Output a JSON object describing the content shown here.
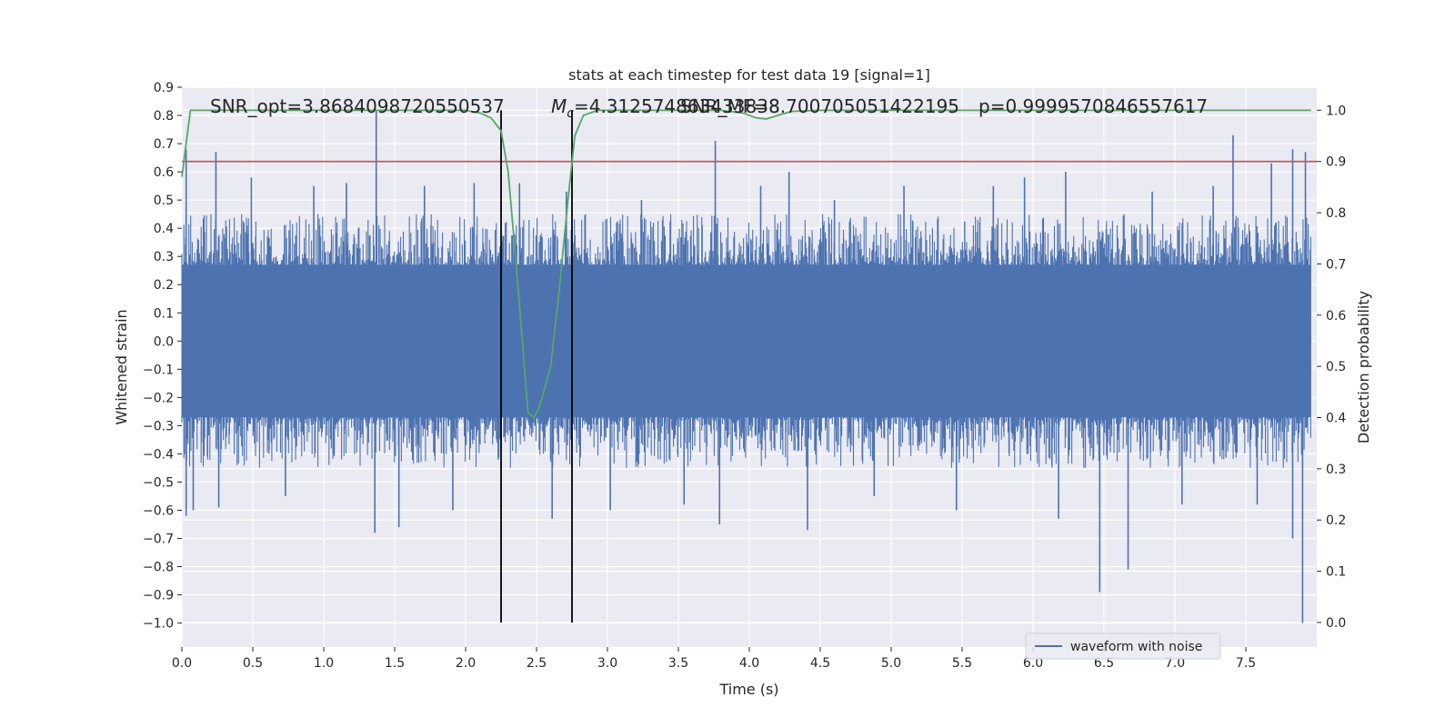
{
  "chart_data": {
    "type": "line",
    "title": "stats at each timestep for test data 19 [signal=1]",
    "xlabel": "Time (s)",
    "ylabel": "Whitened strain",
    "y2label": "Detection probability",
    "xlim": [
      0.0,
      8.0
    ],
    "ylim": [
      -1.085,
      0.9
    ],
    "y2lim": [
      -0.048,
      1.045
    ],
    "xticks": [
      "0.0",
      "0.5",
      "1.0",
      "1.5",
      "2.0",
      "2.5",
      "3.0",
      "3.5",
      "4.0",
      "4.5",
      "5.0",
      "5.5",
      "6.0",
      "6.5",
      "7.0",
      "7.5"
    ],
    "yticks": [
      "0.9",
      "0.8",
      "0.7",
      "0.6",
      "0.5",
      "0.4",
      "0.3",
      "0.2",
      "0.1",
      "0.0",
      "−0.1",
      "−0.2",
      "−0.3",
      "−0.4",
      "−0.5",
      "−0.6",
      "−0.7",
      "−0.8",
      "−0.9",
      "−1.0"
    ],
    "y2ticks": [
      "1.0",
      "0.9",
      "0.8",
      "0.7",
      "0.6",
      "0.5",
      "0.4",
      "0.3",
      "0.2",
      "0.1",
      "0.0"
    ],
    "grid": true,
    "legend_position": "lower-right",
    "annotations": {
      "snr_opt": "SNR_opt=3.8684098720550537",
      "chirp_mass_symbol": "M",
      "chirp_mass_sub": "c",
      "chirp_mass_value": "=4.312574863433838",
      "snr_mf": "SNR_MF=8.700705051422195",
      "probability": "p=0.9999570846557617"
    },
    "threshold_line": {
      "y2": 0.9,
      "color": "#c44e52"
    },
    "signal_window": {
      "x_start": 2.25,
      "x_end": 2.75
    },
    "series": [
      {
        "name": "waveform with noise",
        "color": "#4c72b0",
        "axis": "left",
        "noise_envelope": {
          "x_start": 0.0,
          "x_end": 7.96,
          "dense_band": [
            -0.27,
            0.27
          ],
          "typical_peaks": [
            0.45,
            -0.45
          ]
        },
        "spikes": [
          {
            "x": 0.03,
            "y": 0.68
          },
          {
            "x": 0.03,
            "y": -0.62
          },
          {
            "x": 0.08,
            "y": -0.6
          },
          {
            "x": 0.24,
            "y": 0.67
          },
          {
            "x": 0.26,
            "y": -0.59
          },
          {
            "x": 0.49,
            "y": 0.58
          },
          {
            "x": 0.73,
            "y": -0.55
          },
          {
            "x": 0.93,
            "y": 0.55
          },
          {
            "x": 1.16,
            "y": 0.56
          },
          {
            "x": 1.37,
            "y": 0.82
          },
          {
            "x": 1.36,
            "y": -0.68
          },
          {
            "x": 1.53,
            "y": -0.66
          },
          {
            "x": 1.71,
            "y": 0.55
          },
          {
            "x": 1.91,
            "y": -0.6
          },
          {
            "x": 2.06,
            "y": 0.56
          },
          {
            "x": 2.23,
            "y": -0.42
          },
          {
            "x": 2.38,
            "y": 0.56
          },
          {
            "x": 2.61,
            "y": -0.63
          },
          {
            "x": 2.71,
            "y": 0.53
          },
          {
            "x": 3.02,
            "y": -0.6
          },
          {
            "x": 3.24,
            "y": 0.5
          },
          {
            "x": 3.54,
            "y": -0.58
          },
          {
            "x": 3.76,
            "y": 0.71
          },
          {
            "x": 3.79,
            "y": -0.65
          },
          {
            "x": 4.08,
            "y": 0.55
          },
          {
            "x": 4.28,
            "y": 0.6
          },
          {
            "x": 4.41,
            "y": -0.67
          },
          {
            "x": 4.6,
            "y": 0.5
          },
          {
            "x": 4.88,
            "y": -0.55
          },
          {
            "x": 5.09,
            "y": 0.55
          },
          {
            "x": 5.46,
            "y": -0.6
          },
          {
            "x": 5.72,
            "y": 0.55
          },
          {
            "x": 5.94,
            "y": 0.58
          },
          {
            "x": 6.18,
            "y": -0.63
          },
          {
            "x": 6.23,
            "y": 0.6
          },
          {
            "x": 6.47,
            "y": -0.89
          },
          {
            "x": 6.67,
            "y": -0.81
          },
          {
            "x": 6.84,
            "y": 0.53
          },
          {
            "x": 7.05,
            "y": -0.58
          },
          {
            "x": 7.27,
            "y": 0.55
          },
          {
            "x": 7.41,
            "y": 0.73
          },
          {
            "x": 7.58,
            "y": -0.58
          },
          {
            "x": 7.68,
            "y": 0.63
          },
          {
            "x": 7.83,
            "y": 0.68
          },
          {
            "x": 7.83,
            "y": -0.7
          },
          {
            "x": 7.9,
            "y": -1.0
          },
          {
            "x": 7.92,
            "y": 0.67
          }
        ]
      },
      {
        "name": "",
        "color": "#55a868",
        "axis": "right",
        "points": [
          [
            0.0,
            0.87
          ],
          [
            0.06,
            1.0
          ],
          [
            1.5,
            1.0
          ],
          [
            2.0,
            1.0
          ],
          [
            2.1,
            0.995
          ],
          [
            2.18,
            0.985
          ],
          [
            2.25,
            0.96
          ],
          [
            2.3,
            0.88
          ],
          [
            2.35,
            0.72
          ],
          [
            2.4,
            0.55
          ],
          [
            2.44,
            0.41
          ],
          [
            2.48,
            0.4
          ],
          [
            2.52,
            0.42
          ],
          [
            2.6,
            0.5
          ],
          [
            2.66,
            0.65
          ],
          [
            2.72,
            0.82
          ],
          [
            2.77,
            0.95
          ],
          [
            2.83,
            0.99
          ],
          [
            2.93,
            1.0
          ],
          [
            3.6,
            1.0
          ],
          [
            3.8,
            1.0
          ],
          [
            3.95,
            0.995
          ],
          [
            4.05,
            0.985
          ],
          [
            4.12,
            0.983
          ],
          [
            4.2,
            0.99
          ],
          [
            4.3,
            0.998
          ],
          [
            4.5,
            1.0
          ],
          [
            7.96,
            1.0
          ]
        ]
      }
    ]
  }
}
